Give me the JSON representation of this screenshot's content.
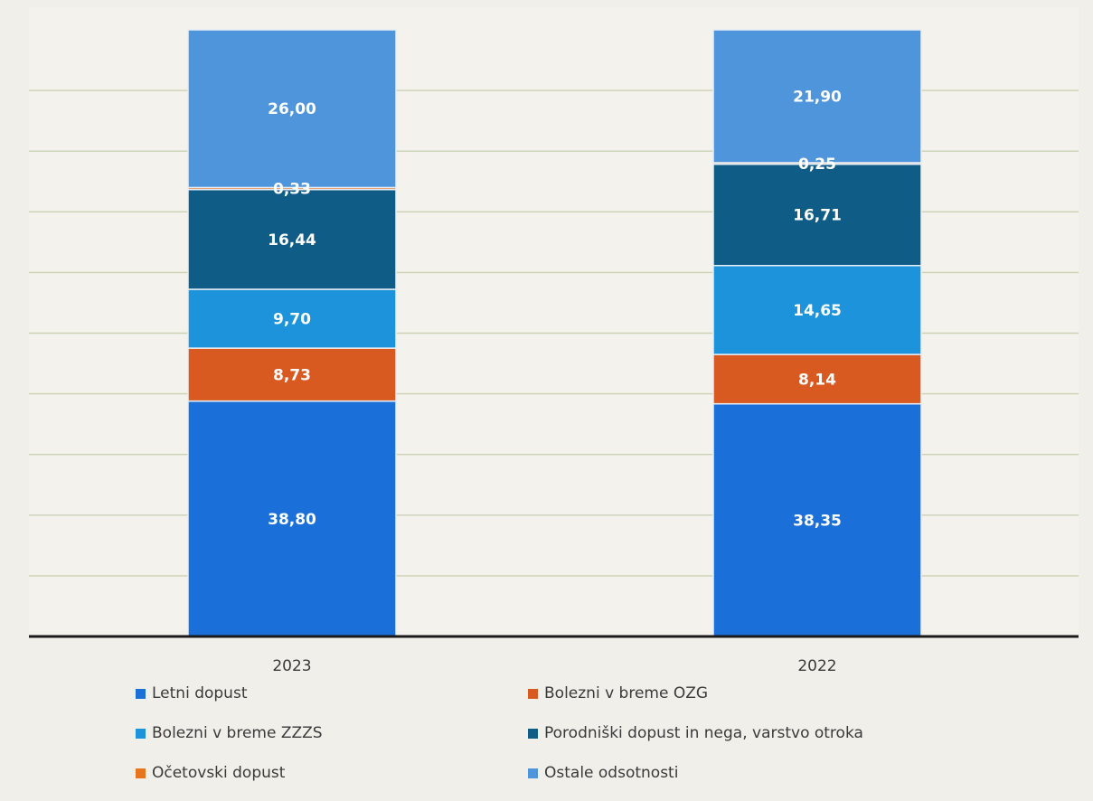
{
  "chart_data": {
    "type": "bar",
    "stacked": true,
    "categories": [
      "2023",
      "2022"
    ],
    "series": [
      {
        "name": "Letni dopust",
        "color": "#1a6fd9",
        "values": [
          38.8,
          38.35
        ],
        "labels": [
          "38,80",
          "38,35"
        ]
      },
      {
        "name": "Bolezni v breme OZG",
        "color": "#d85a20",
        "values": [
          8.73,
          8.14
        ],
        "labels": [
          "8,73",
          "8,14"
        ]
      },
      {
        "name": "Bolezni v breme ZZZS",
        "color": "#1c93da",
        "values": [
          9.7,
          14.65
        ],
        "labels": [
          "9,70",
          "14,65"
        ]
      },
      {
        "name": "Porodniški dopust in nega, varstvo otroka",
        "color": "#0f5c86",
        "values": [
          16.44,
          16.71
        ],
        "labels": [
          "16,44",
          "16,71"
        ]
      },
      {
        "name": "Očetovski dopust",
        "color": "#e8751e",
        "values": [
          0.33,
          0.25
        ],
        "labels": [
          "0,33",
          "0,25"
        ]
      },
      {
        "name": "Ostale odsotnosti",
        "color": "#4f95dc",
        "values": [
          26.0,
          21.9
        ],
        "labels": [
          "26,00",
          "21,90"
        ]
      }
    ],
    "ylim": [
      0,
      100
    ],
    "grid": true,
    "legend_position": "bottom"
  }
}
